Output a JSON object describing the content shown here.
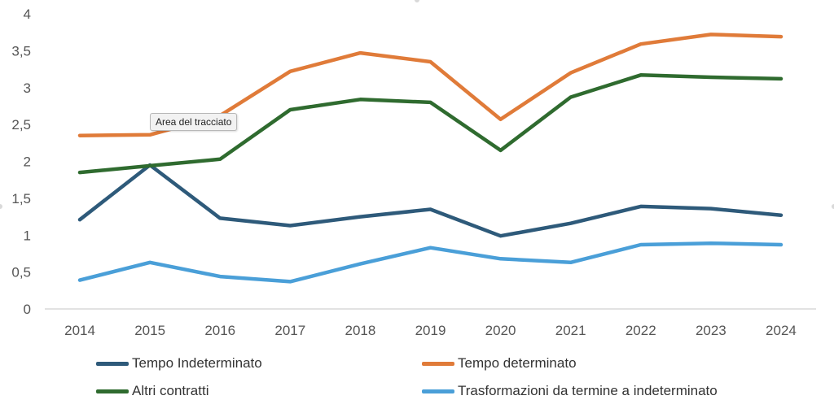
{
  "chart_data": {
    "type": "line",
    "title": "",
    "xlabel": "",
    "ylabel": "",
    "x": [
      "2014",
      "2015",
      "2016",
      "2017",
      "2018",
      "2019",
      "2020",
      "2021",
      "2022",
      "2023",
      "2024"
    ],
    "ylim": [
      0,
      4
    ],
    "yticks": [
      "0",
      "0,5",
      "1",
      "1,5",
      "2",
      "2,5",
      "3",
      "3,5",
      "4"
    ],
    "grid": false,
    "legend_position": "bottom",
    "series": [
      {
        "name": "Tempo Indeterminato",
        "color": "#2e5a7a",
        "values": [
          1.21,
          1.95,
          1.23,
          1.13,
          1.25,
          1.35,
          0.99,
          1.16,
          1.39,
          1.36,
          1.27
        ]
      },
      {
        "name": "Tempo determinato",
        "color": "#e07b39",
        "values": [
          2.35,
          2.36,
          2.62,
          3.22,
          3.47,
          3.35,
          2.57,
          3.2,
          3.59,
          3.72,
          3.69
        ]
      },
      {
        "name": "Altri contratti",
        "color": "#2f6b2f",
        "values": [
          1.85,
          1.94,
          2.03,
          2.7,
          2.84,
          2.8,
          2.15,
          2.87,
          3.17,
          3.14,
          3.12
        ]
      },
      {
        "name": "Trasformazioni da termine a indeterminato",
        "color": "#4a9fd8",
        "values": [
          0.39,
          0.63,
          0.44,
          0.37,
          0.61,
          0.83,
          0.68,
          0.63,
          0.87,
          0.89,
          0.87
        ]
      }
    ]
  },
  "tooltip": {
    "text": "Area del tracciato"
  }
}
